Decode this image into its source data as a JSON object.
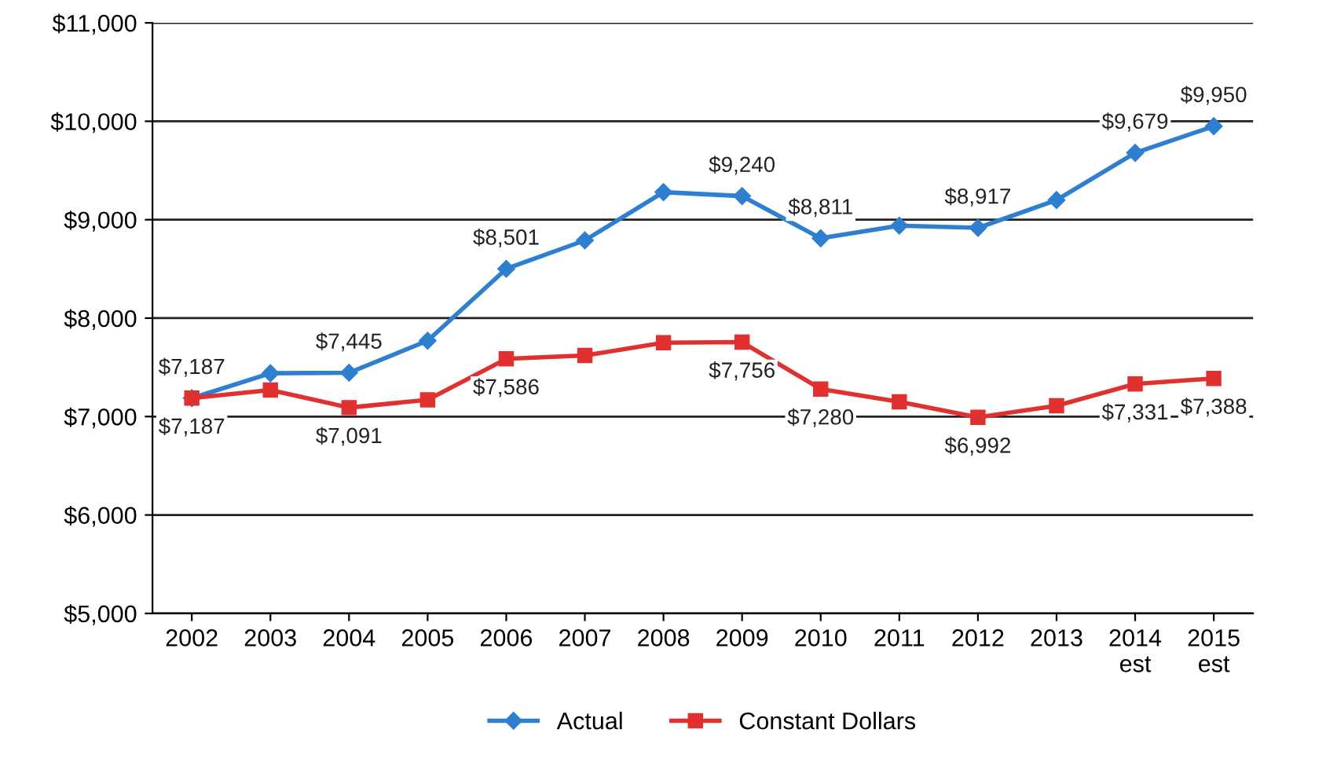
{
  "chart_data": {
    "type": "line",
    "categories": [
      "2002",
      "2003",
      "2004",
      "2005",
      "2006",
      "2007",
      "2008",
      "2009",
      "2010",
      "2011",
      "2012",
      "2013",
      "2014\nest",
      "2015\nest"
    ],
    "series": [
      {
        "name": "Actual",
        "color": "#2e7fd0",
        "marker": "diamond",
        "values": [
          7187,
          7440,
          7445,
          7770,
          8501,
          8790,
          9280,
          9240,
          8811,
          8940,
          8917,
          9200,
          9679,
          9950
        ],
        "value_labels": [
          "$7,187",
          null,
          "$7,445",
          null,
          "$8,501",
          null,
          null,
          "$9,240",
          "$8,811",
          null,
          "$8,917",
          null,
          "$9,679",
          "$9,950"
        ]
      },
      {
        "name": "Constant Dollars",
        "color": "#e03030",
        "marker": "square",
        "values": [
          7187,
          7270,
          7091,
          7170,
          7586,
          7620,
          7750,
          7756,
          7280,
          7150,
          6992,
          7110,
          7331,
          7388
        ],
        "value_labels": [
          "$7,187",
          null,
          "$7,091",
          null,
          "$7,586",
          null,
          null,
          "$7,756",
          "$7,280",
          null,
          "$6,992",
          null,
          "$7,331",
          "$7,388"
        ]
      }
    ],
    "ylim": [
      5000,
      11000
    ],
    "yticks": [
      {
        "value": 5000,
        "label": "$5,000"
      },
      {
        "value": 6000,
        "label": "$6,000"
      },
      {
        "value": 7000,
        "label": "$7,000"
      },
      {
        "value": 8000,
        "label": "$8,000"
      },
      {
        "value": 9000,
        "label": "$9,000"
      },
      {
        "value": 10000,
        "label": "$10,000"
      },
      {
        "value": 11000,
        "label": "$11,000"
      }
    ],
    "grid": "y",
    "legend": "bottom",
    "line_style": "solid"
  }
}
